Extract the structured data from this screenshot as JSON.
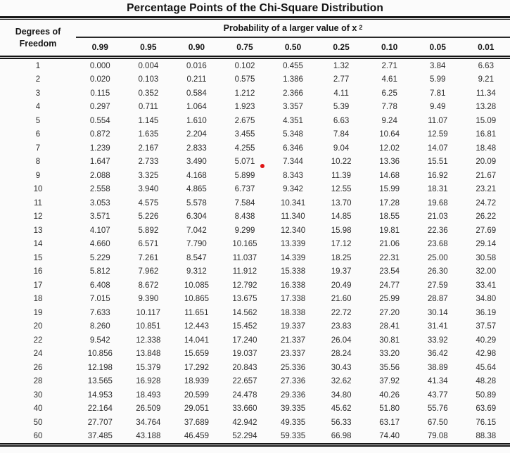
{
  "title": "Percentage Points of the Chi-Square Distribution",
  "table": {
    "row_header_line1": "Degrees of",
    "row_header_line2": "Freedom",
    "col_group_header": "Probability of a larger value of x",
    "col_group_superscript": "2",
    "columns": [
      "0.99",
      "0.95",
      "0.90",
      "0.75",
      "0.50",
      "0.25",
      "0.10",
      "0.05",
      "0.01"
    ],
    "rows": [
      {
        "df": "1",
        "values": [
          "0.000",
          "0.004",
          "0.016",
          "0.102",
          "0.455",
          "1.32",
          "2.71",
          "3.84",
          "6.63"
        ]
      },
      {
        "df": "2",
        "values": [
          "0.020",
          "0.103",
          "0.211",
          "0.575",
          "1.386",
          "2.77",
          "4.61",
          "5.99",
          "9.21"
        ]
      },
      {
        "df": "3",
        "values": [
          "0.115",
          "0.352",
          "0.584",
          "1.212",
          "2.366",
          "4.11",
          "6.25",
          "7.81",
          "11.34"
        ]
      },
      {
        "df": "4",
        "values": [
          "0.297",
          "0.711",
          "1.064",
          "1.923",
          "3.357",
          "5.39",
          "7.78",
          "9.49",
          "13.28"
        ]
      },
      {
        "df": "5",
        "values": [
          "0.554",
          "1.145",
          "1.610",
          "2.675",
          "4.351",
          "6.63",
          "9.24",
          "11.07",
          "15.09"
        ]
      },
      {
        "df": "6",
        "values": [
          "0.872",
          "1.635",
          "2.204",
          "3.455",
          "5.348",
          "7.84",
          "10.64",
          "12.59",
          "16.81"
        ]
      },
      {
        "df": "7",
        "values": [
          "1.239",
          "2.167",
          "2.833",
          "4.255",
          "6.346",
          "9.04",
          "12.02",
          "14.07",
          "18.48"
        ]
      },
      {
        "df": "8",
        "values": [
          "1.647",
          "2.733",
          "3.490",
          "5.071",
          "7.344",
          "10.22",
          "13.36",
          "15.51",
          "20.09"
        ]
      },
      {
        "df": "9",
        "values": [
          "2.088",
          "3.325",
          "4.168",
          "5.899",
          "8.343",
          "11.39",
          "14.68",
          "16.92",
          "21.67"
        ]
      },
      {
        "df": "10",
        "values": [
          "2.558",
          "3.940",
          "4.865",
          "6.737",
          "9.342",
          "12.55",
          "15.99",
          "18.31",
          "23.21"
        ]
      },
      {
        "df": "11",
        "values": [
          "3.053",
          "4.575",
          "5.578",
          "7.584",
          "10.341",
          "13.70",
          "17.28",
          "19.68",
          "24.72"
        ]
      },
      {
        "df": "12",
        "values": [
          "3.571",
          "5.226",
          "6.304",
          "8.438",
          "11.340",
          "14.85",
          "18.55",
          "21.03",
          "26.22"
        ]
      },
      {
        "df": "13",
        "values": [
          "4.107",
          "5.892",
          "7.042",
          "9.299",
          "12.340",
          "15.98",
          "19.81",
          "22.36",
          "27.69"
        ]
      },
      {
        "df": "14",
        "values": [
          "4.660",
          "6.571",
          "7.790",
          "10.165",
          "13.339",
          "17.12",
          "21.06",
          "23.68",
          "29.14"
        ]
      },
      {
        "df": "15",
        "values": [
          "5.229",
          "7.261",
          "8.547",
          "11.037",
          "14.339",
          "18.25",
          "22.31",
          "25.00",
          "30.58"
        ]
      },
      {
        "df": "16",
        "values": [
          "5.812",
          "7.962",
          "9.312",
          "11.912",
          "15.338",
          "19.37",
          "23.54",
          "26.30",
          "32.00"
        ]
      },
      {
        "df": "17",
        "values": [
          "6.408",
          "8.672",
          "10.085",
          "12.792",
          "16.338",
          "20.49",
          "24.77",
          "27.59",
          "33.41"
        ]
      },
      {
        "df": "18",
        "values": [
          "7.015",
          "9.390",
          "10.865",
          "13.675",
          "17.338",
          "21.60",
          "25.99",
          "28.87",
          "34.80"
        ]
      },
      {
        "df": "19",
        "values": [
          "7.633",
          "10.117",
          "11.651",
          "14.562",
          "18.338",
          "22.72",
          "27.20",
          "30.14",
          "36.19"
        ]
      },
      {
        "df": "20",
        "values": [
          "8.260",
          "10.851",
          "12.443",
          "15.452",
          "19.337",
          "23.83",
          "28.41",
          "31.41",
          "37.57"
        ]
      },
      {
        "df": "22",
        "values": [
          "9.542",
          "12.338",
          "14.041",
          "17.240",
          "21.337",
          "26.04",
          "30.81",
          "33.92",
          "40.29"
        ]
      },
      {
        "df": "24",
        "values": [
          "10.856",
          "13.848",
          "15.659",
          "19.037",
          "23.337",
          "28.24",
          "33.20",
          "36.42",
          "42.98"
        ]
      },
      {
        "df": "26",
        "values": [
          "12.198",
          "15.379",
          "17.292",
          "20.843",
          "25.336",
          "30.43",
          "35.56",
          "38.89",
          "45.64"
        ]
      },
      {
        "df": "28",
        "values": [
          "13.565",
          "16.928",
          "18.939",
          "22.657",
          "27.336",
          "32.62",
          "37.92",
          "41.34",
          "48.28"
        ]
      },
      {
        "df": "30",
        "values": [
          "14.953",
          "18.493",
          "20.599",
          "24.478",
          "29.336",
          "34.80",
          "40.26",
          "43.77",
          "50.89"
        ]
      },
      {
        "df": "40",
        "values": [
          "22.164",
          "26.509",
          "29.051",
          "33.660",
          "39.335",
          "45.62",
          "51.80",
          "55.76",
          "63.69"
        ]
      },
      {
        "df": "50",
        "values": [
          "27.707",
          "34.764",
          "37.689",
          "42.942",
          "49.335",
          "56.33",
          "63.17",
          "67.50",
          "76.15"
        ]
      },
      {
        "df": "60",
        "values": [
          "37.485",
          "43.188",
          "46.459",
          "52.294",
          "59.335",
          "66.98",
          "74.40",
          "79.08",
          "88.38"
        ]
      }
    ]
  },
  "annotation": {
    "type": "pointer-dot",
    "color": "#e01414"
  }
}
